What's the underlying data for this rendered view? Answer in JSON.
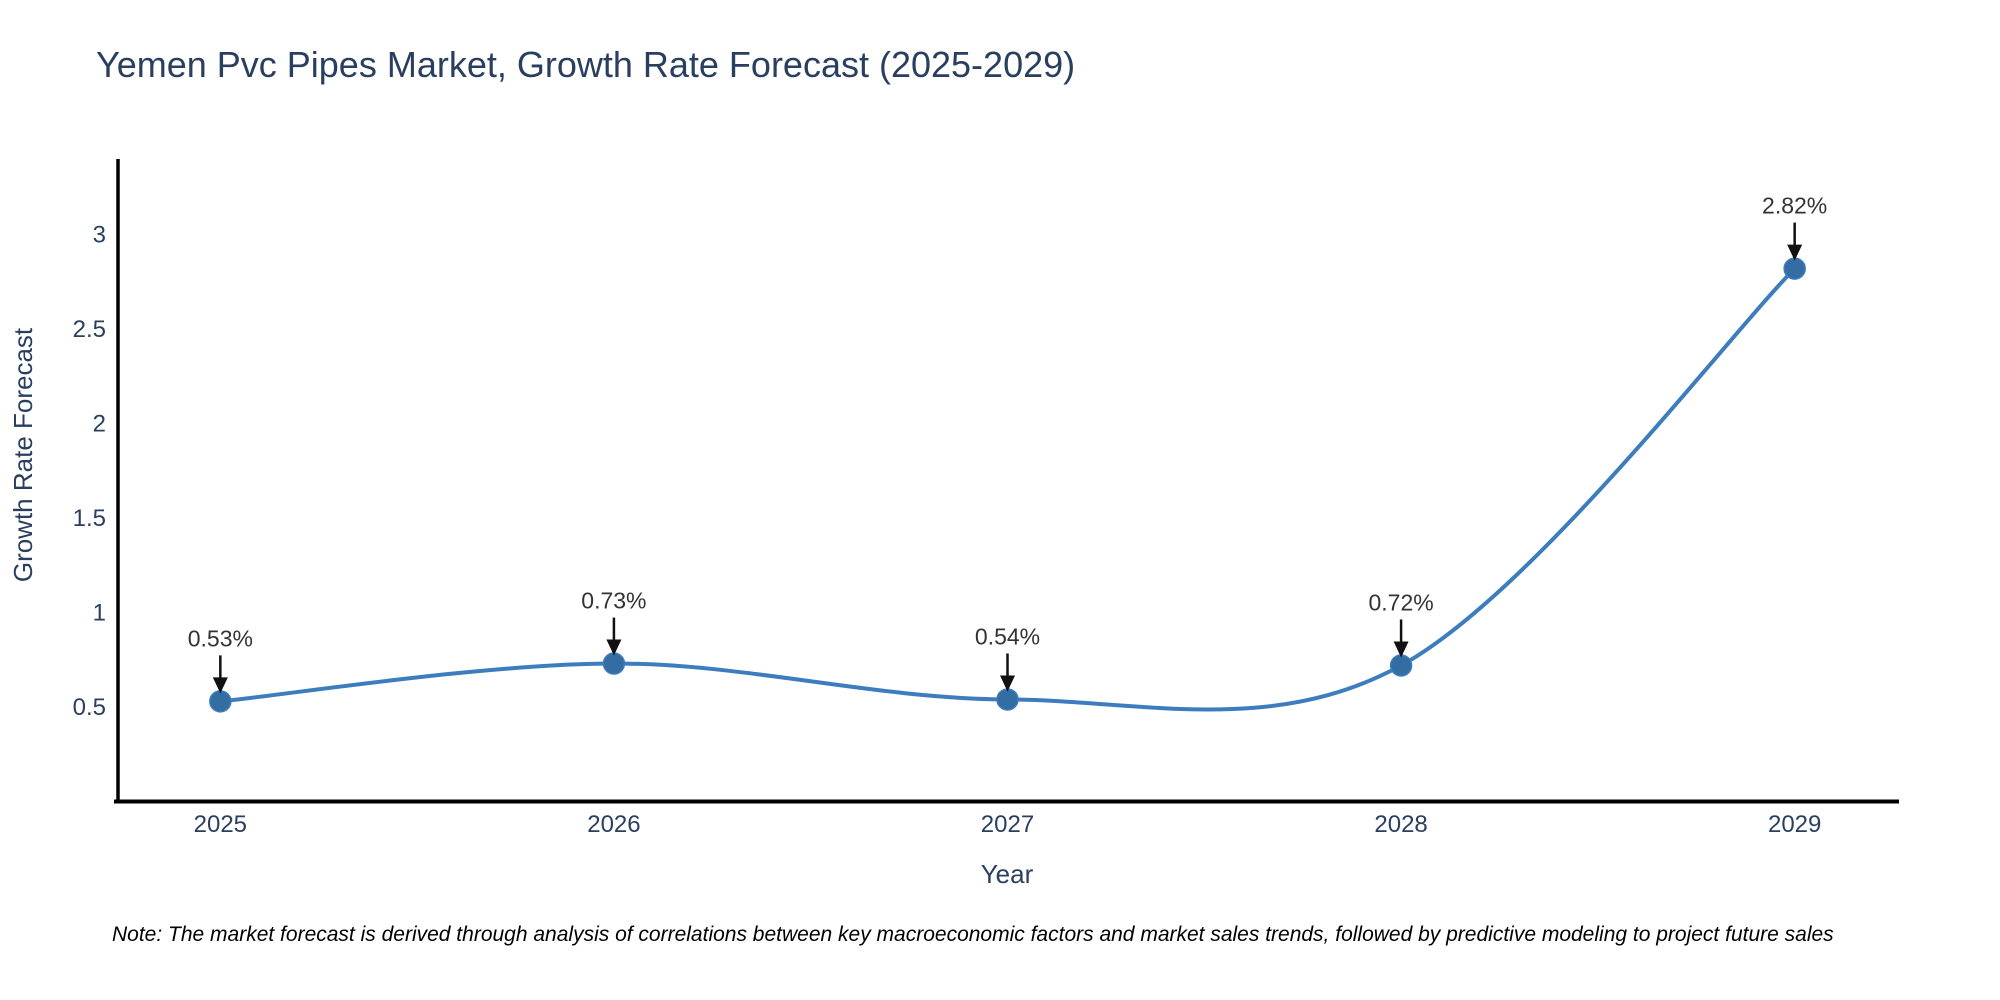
{
  "chart_data": {
    "type": "line",
    "title": "Yemen Pvc Pipes Market, Growth Rate Forecast (2025-2029)",
    "xlabel": "Year",
    "ylabel": "Growth Rate Forecast",
    "x": [
      2025,
      2026,
      2027,
      2028,
      2029
    ],
    "values": [
      0.53,
      0.73,
      0.54,
      0.72,
      2.82
    ],
    "point_labels": [
      "0.53%",
      "0.73%",
      "0.54%",
      "0.72%",
      "2.82%"
    ],
    "series_name": "Growth Rate Forecast",
    "line_shape": "spline",
    "grid": false,
    "legend": "none",
    "yticks": [
      0.5,
      1,
      1.5,
      2,
      2.5,
      3
    ],
    "xticks": [
      2025,
      2026,
      2027,
      2028,
      2029
    ],
    "ylim": [
      0,
      3.4
    ],
    "xlim": [
      2024.74,
      2029.26
    ],
    "colors": {
      "line": "#3d7dbd",
      "marker": "#336da3",
      "axis": "#000000",
      "text": "#2a3f5f",
      "annotation_text": "#333333",
      "arrow": "#111111",
      "background": "#ffffff"
    }
  },
  "note": "Note: The market forecast is derived through analysis of correlations between key macroeconomic factors and market sales trends, followed by predictive modeling to project future sales"
}
